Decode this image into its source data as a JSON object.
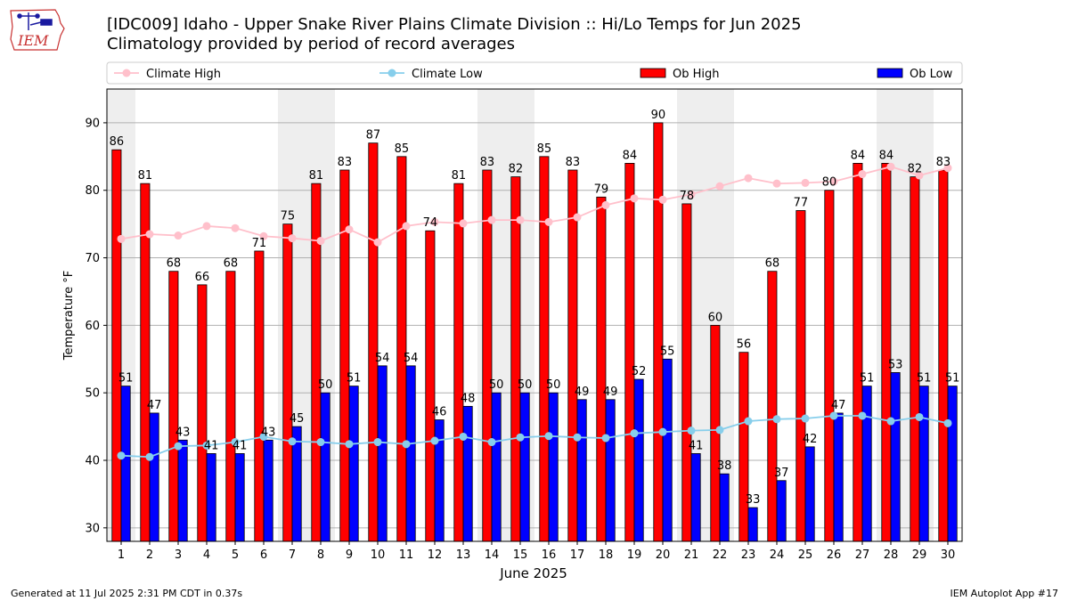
{
  "header": {
    "title": "[IDC009] Idaho - Upper Snake River Plains Climate Division :: Hi/Lo Temps for Jun 2025",
    "subtitle": "Climatology provided by period of record averages",
    "logo_text": "IEM"
  },
  "footer": {
    "generated": "Generated at 11 Jul 2025 2:31 PM CDT in 0.37s",
    "app": "IEM Autoplot App #17"
  },
  "chart_data": {
    "type": "bar",
    "xlabel": "June 2025",
    "ylabel": "Temperature °F",
    "ylim": [
      28,
      95
    ],
    "yticks": [
      30,
      40,
      50,
      60,
      70,
      80,
      90
    ],
    "grid": true,
    "legend_placement": "top",
    "categories": [
      "1",
      "2",
      "3",
      "4",
      "5",
      "6",
      "7",
      "8",
      "9",
      "10",
      "11",
      "12",
      "13",
      "14",
      "15",
      "16",
      "17",
      "18",
      "19",
      "20",
      "21",
      "22",
      "23",
      "24",
      "25",
      "26",
      "27",
      "28",
      "29",
      "30"
    ],
    "weekend_shaded_days": [
      "1",
      "7",
      "8",
      "14",
      "15",
      "21",
      "22",
      "28",
      "29"
    ],
    "series": [
      {
        "name": "Ob High",
        "kind": "bar",
        "color": "#ff0000",
        "values": [
          86,
          81,
          68,
          66,
          68,
          71,
          75,
          81,
          83,
          87,
          85,
          74,
          81,
          83,
          82,
          85,
          83,
          79,
          84,
          90,
          78,
          60,
          56,
          68,
          77,
          80,
          84,
          84,
          82,
          83
        ]
      },
      {
        "name": "Ob Low",
        "kind": "bar",
        "color": "#0000ff",
        "values": [
          51,
          47,
          43,
          41,
          41,
          43,
          45,
          50,
          51,
          54,
          54,
          46,
          48,
          50,
          50,
          50,
          49,
          49,
          52,
          55,
          41,
          38,
          33,
          37,
          42,
          47,
          51,
          53,
          51,
          51
        ]
      },
      {
        "name": "Climate High",
        "kind": "line",
        "color": "#ffc0cb",
        "values": [
          72.8,
          73.5,
          73.3,
          74.7,
          74.4,
          73.2,
          72.9,
          72.5,
          74.2,
          72.3,
          74.7,
          75.3,
          75.1,
          75.6,
          75.6,
          75.3,
          76.0,
          77.8,
          78.8,
          78.6,
          79.4,
          80.6,
          81.8,
          81.0,
          81.1,
          81.3,
          82.4,
          83.5,
          82.2,
          83.3
        ]
      },
      {
        "name": "Climate Low",
        "kind": "line",
        "color": "#87ceeb",
        "values": [
          40.7,
          40.5,
          42.1,
          42.2,
          42.7,
          43.5,
          42.8,
          42.7,
          42.4,
          42.7,
          42.4,
          42.9,
          43.5,
          42.7,
          43.4,
          43.6,
          43.4,
          43.3,
          44.0,
          44.2,
          44.4,
          44.5,
          45.8,
          46.1,
          46.2,
          46.6,
          46.6,
          45.8,
          46.4,
          45.5
        ]
      }
    ],
    "legend_order": [
      "Climate High",
      "Climate Low",
      "Ob High",
      "Ob Low"
    ]
  }
}
